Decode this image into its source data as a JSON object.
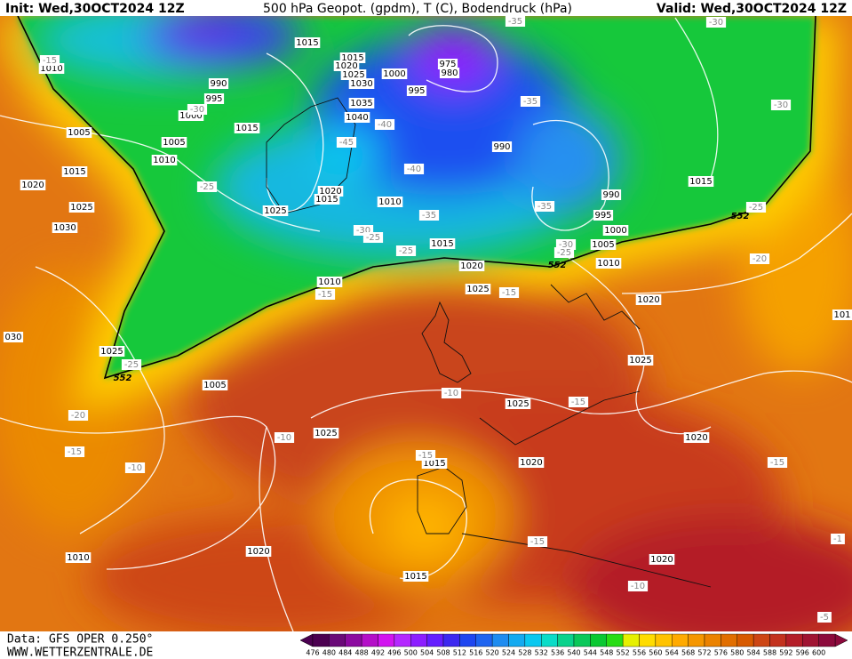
{
  "header": {
    "init": "Init: Wed,30OCT2024 12Z",
    "title": "500 hPa Geopot. (gpdm), T (C), Bodendruck (hPa)",
    "valid": "Valid: Wed,30OCT2024 12Z"
  },
  "footer": {
    "source": "Data: GFS OPER 0.250°",
    "website": "WWW.WETTERZENTRALE.DE"
  },
  "legend": {
    "values": [
      476,
      480,
      484,
      488,
      492,
      496,
      500,
      504,
      508,
      512,
      516,
      520,
      524,
      528,
      532,
      536,
      540,
      544,
      548,
      552,
      556,
      560,
      564,
      568,
      572,
      576,
      580,
      584,
      588,
      592,
      596,
      600
    ],
    "colors": [
      "#4b0050",
      "#6a0a78",
      "#8c0aa0",
      "#b40fc8",
      "#d214f0",
      "#b428ff",
      "#8c1eff",
      "#641eff",
      "#3c28f0",
      "#1e46f0",
      "#1e64f0",
      "#1e8cf0",
      "#14aaf0",
      "#0ac8f0",
      "#0adcc8",
      "#0ad28c",
      "#0ac85a",
      "#0ac832",
      "#28dc14",
      "#e6f000",
      "#ffdc00",
      "#ffc300",
      "#ffaa00",
      "#f59600",
      "#eb8200",
      "#e16e00",
      "#d75a00",
      "#cd4614",
      "#c3321e",
      "#b41e28",
      "#a01432",
      "#8c0a3c"
    ]
  },
  "labels": {
    "pressure": [
      "1015",
      "1010",
      "990",
      "995",
      "1000",
      "1005",
      "1005",
      "1015",
      "1010",
      "1015",
      "1020",
      "1025",
      "1030",
      "1015",
      "1020",
      "1025",
      "1030",
      "1035",
      "1040",
      "1000",
      "995",
      "975",
      "980",
      "990",
      "990",
      "995",
      "1000",
      "1005",
      "1010",
      "1015",
      "1010",
      "1020",
      "1015",
      "1025",
      "1015",
      "1020",
      "1025",
      "1010",
      "1020",
      "1025",
      "1025",
      "1005",
      "1025",
      "1025",
      "1020",
      "1015",
      "1020",
      "1020",
      "1010",
      "1020",
      "1015",
      "030",
      "101"
    ],
    "temperature": [
      "-15",
      "-30",
      "-40",
      "-45",
      "-40",
      "-25",
      "-35",
      "-30",
      "-25",
      "-25",
      "-35",
      "-35",
      "-35",
      "-30",
      "-30",
      "-25",
      "-30",
      "-25",
      "-20",
      "-15",
      "-15",
      "-25",
      "-20",
      "-15",
      "-10",
      "-10",
      "-10",
      "-15",
      "-15",
      "-15",
      "-15",
      "-10",
      "-1",
      "-5"
    ],
    "thickness": [
      "552",
      "552",
      "552"
    ]
  }
}
